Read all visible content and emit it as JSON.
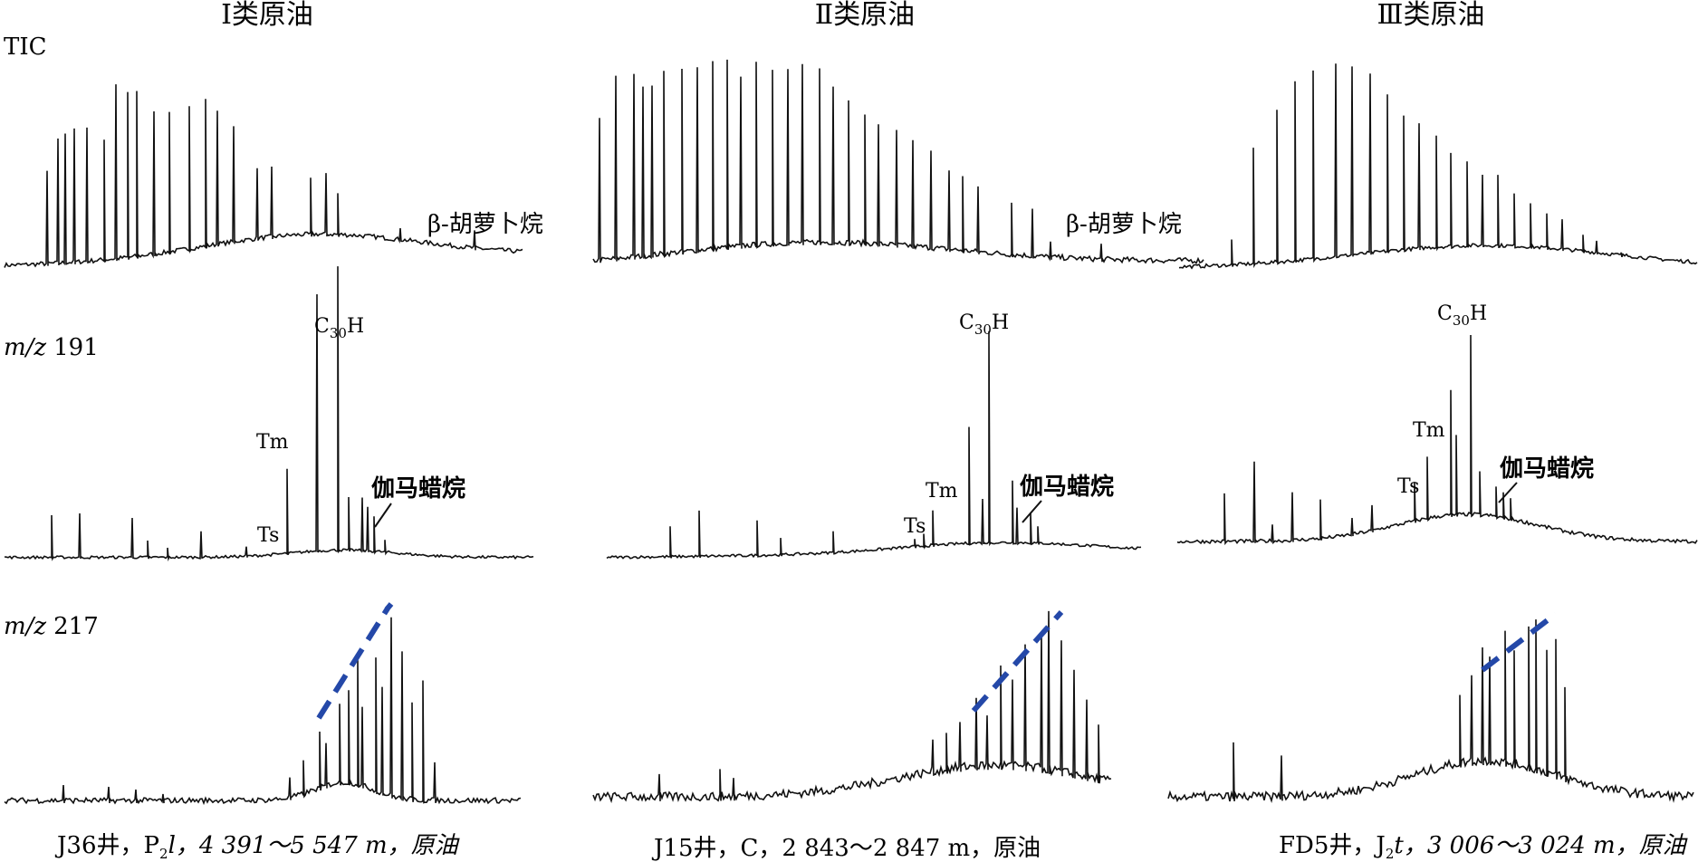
{
  "chart_data": {
    "type": "line",
    "figure_kind": "chromatogram grid",
    "columns": [
      {
        "title": "Ⅰ类原油",
        "caption": "J36井，P₂l，4 391～5 547 m，原油"
      },
      {
        "title": "Ⅱ类原油",
        "caption": "J15井，C，2 843～2 847 m，原油"
      },
      {
        "title": "Ⅲ类原油",
        "caption": "FD5井，J₂t，3 006～3 024 m，原油"
      }
    ],
    "rows": [
      {
        "label": "TIC"
      },
      {
        "label": "m/z 191"
      },
      {
        "label": "m/z 217"
      }
    ],
    "panel_labels": {
      "beta": "β-胡萝卜烷",
      "gam": "伽马蜡烷",
      "tm": "Tm",
      "ts": "Ts",
      "c30h": "C30H"
    },
    "annotation_color": "#2448a8",
    "trace_color": "#111111"
  },
  "labels": {
    "col1_title": "Ⅰ类原油",
    "col2_title": "Ⅱ类原油",
    "col3_title": "Ⅲ类原油",
    "row_tic": "TIC",
    "row_191_prefix": "m/z",
    "row_191_num": "191",
    "row_217_prefix": "m/z",
    "row_217_num": "217",
    "beta": "β-胡萝卜烷",
    "gam": "伽马蜡烷",
    "tm": "Tm",
    "ts": "Ts",
    "c30_C": "C",
    "c30_sub": "30",
    "c30_H": "H",
    "cap1_a": "J36井，P",
    "cap1_sub": "2",
    "cap1_b": "l，4 391～5 547 m，原油",
    "cap2": "J15井，C，2 843～2 847 m，原油",
    "cap3_a": "FD5井，J",
    "cap3_sub": "2",
    "cap3_b": "t，3 006～3 024 m，原油"
  }
}
